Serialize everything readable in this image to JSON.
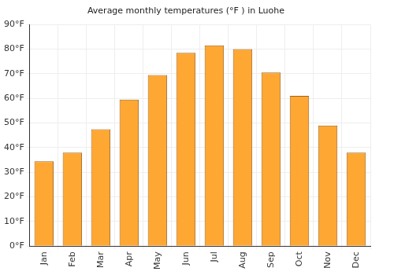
{
  "chart_data": {
    "type": "bar",
    "title": "Average monthly temperatures (°F ) in Luohe",
    "categories": [
      "Jan",
      "Feb",
      "Mar",
      "Apr",
      "May",
      "Jun",
      "Jul",
      "Aug",
      "Sep",
      "Oct",
      "Nov",
      "Dec"
    ],
    "values": [
      34.5,
      38,
      47.5,
      59.5,
      69.5,
      78.5,
      81.5,
      80,
      70.5,
      61,
      49,
      38
    ],
    "color": "#ffa733",
    "ylim": [
      0,
      90
    ],
    "yticks": [
      {
        "value": 0,
        "label": "0°F"
      },
      {
        "value": 10,
        "label": "10°F"
      },
      {
        "value": 20,
        "label": "20°F"
      },
      {
        "value": 30,
        "label": "30°F"
      },
      {
        "value": 40,
        "label": "40°F"
      },
      {
        "value": 50,
        "label": "50°F"
      },
      {
        "value": 60,
        "label": "60°F"
      },
      {
        "value": 70,
        "label": "70°F"
      },
      {
        "value": 80,
        "label": "80°F"
      },
      {
        "value": 90,
        "label": "90°F"
      }
    ],
    "grid": true
  }
}
